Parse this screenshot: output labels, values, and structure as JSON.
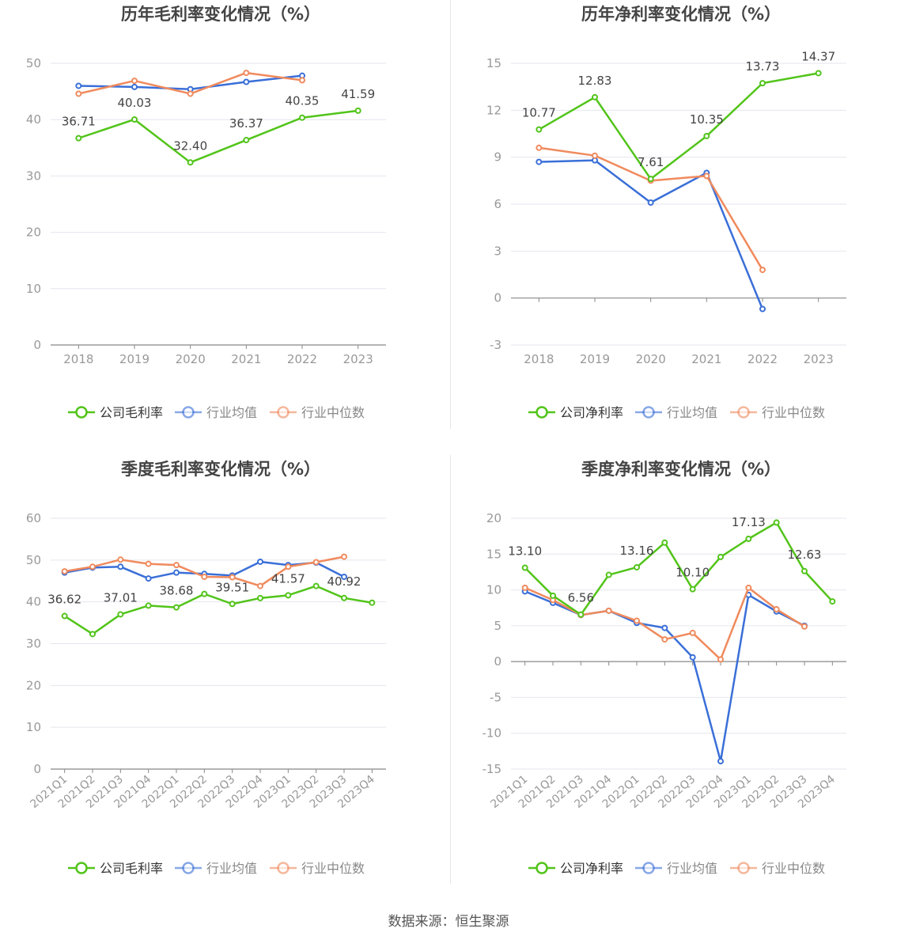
{
  "colors": {
    "company": "#52c41a",
    "avg": "#3a6fd8",
    "median": "#f08a5d",
    "grid": "#e4e6ee",
    "axis": "#999999",
    "text": "#666666",
    "title": "#444444"
  },
  "source_text": "数据来源：恒生聚源",
  "chart_data": [
    {
      "type": "line",
      "title": "历年毛利率变化情况（%）",
      "categories": [
        "2018",
        "2019",
        "2020",
        "2021",
        "2022",
        "2023"
      ],
      "ylim": [
        0,
        50
      ],
      "yticks": [
        0,
        10,
        20,
        30,
        40,
        50
      ],
      "grid": true,
      "legend": "bottom",
      "series": [
        {
          "name": "公司毛利率",
          "role": "company",
          "values": [
            36.71,
            40.03,
            32.4,
            36.37,
            40.35,
            41.59
          ],
          "labels": [
            "36.71",
            "40.03",
            "32.40",
            "36.37",
            "40.35",
            "41.59"
          ]
        },
        {
          "name": "行业均值",
          "role": "avg",
          "values": [
            46.0,
            45.8,
            45.4,
            46.7,
            47.8,
            null
          ]
        },
        {
          "name": "行业中位数",
          "role": "median",
          "values": [
            44.6,
            46.9,
            44.6,
            48.3,
            47.0,
            null
          ]
        }
      ]
    },
    {
      "type": "line",
      "title": "历年净利率变化情况（%）",
      "categories": [
        "2018",
        "2019",
        "2020",
        "2021",
        "2022",
        "2023"
      ],
      "ylim": [
        -3,
        15
      ],
      "yticks": [
        -3,
        0,
        3,
        6,
        9,
        12,
        15
      ],
      "grid": true,
      "legend": "bottom",
      "series": [
        {
          "name": "公司净利率",
          "role": "company",
          "values": [
            10.77,
            12.83,
            7.61,
            10.35,
            13.73,
            14.37
          ],
          "labels": [
            "10.77",
            "12.83",
            "7.61",
            "10.35",
            "13.73",
            "14.37"
          ]
        },
        {
          "name": "行业均值",
          "role": "avg",
          "values": [
            8.7,
            8.8,
            6.1,
            8.0,
            -0.7,
            null
          ]
        },
        {
          "name": "行业中位数",
          "role": "median",
          "values": [
            9.6,
            9.1,
            7.5,
            7.8,
            1.8,
            null
          ]
        }
      ]
    },
    {
      "type": "line",
      "title": "季度毛利率变化情况（%）",
      "categories": [
        "2021Q1",
        "2021Q2",
        "2021Q3",
        "2021Q4",
        "2022Q1",
        "2022Q2",
        "2022Q3",
        "2022Q4",
        "2023Q1",
        "2023Q2",
        "2023Q3",
        "2023Q4"
      ],
      "ylim": [
        0,
        60
      ],
      "yticks": [
        0,
        10,
        20,
        30,
        40,
        50,
        60
      ],
      "grid": true,
      "legend": "bottom",
      "series": [
        {
          "name": "公司毛利率",
          "role": "company",
          "values": [
            36.62,
            32.3,
            37.01,
            39.1,
            38.68,
            41.9,
            39.51,
            40.9,
            41.57,
            43.8,
            40.92,
            39.8
          ],
          "labels": [
            "36.62",
            "",
            "37.01",
            "",
            "38.68",
            "",
            "39.51",
            "",
            "41.57",
            "",
            "40.92",
            ""
          ]
        },
        {
          "name": "行业均值",
          "role": "avg",
          "values": [
            47.0,
            48.2,
            48.4,
            45.6,
            47.0,
            46.7,
            46.3,
            49.6,
            48.8,
            49.4,
            46.0,
            null
          ]
        },
        {
          "name": "行业中位数",
          "role": "median",
          "values": [
            47.3,
            48.4,
            50.1,
            49.1,
            48.8,
            46.0,
            45.9,
            43.8,
            48.4,
            49.5,
            50.8,
            null
          ]
        }
      ]
    },
    {
      "type": "line",
      "title": "季度净利率变化情况（%）",
      "categories": [
        "2021Q1",
        "2021Q2",
        "2021Q3",
        "2021Q4",
        "2022Q1",
        "2022Q2",
        "2022Q3",
        "2022Q4",
        "2023Q1",
        "2023Q2",
        "2023Q3",
        "2023Q4"
      ],
      "ylim": [
        -15,
        20
      ],
      "yticks": [
        -15,
        -10,
        -5,
        0,
        5,
        10,
        15,
        20
      ],
      "grid": true,
      "legend": "bottom",
      "series": [
        {
          "name": "公司净利率",
          "role": "company",
          "values": [
            13.1,
            9.2,
            6.56,
            12.1,
            13.16,
            16.6,
            10.1,
            14.6,
            17.13,
            19.4,
            12.63,
            8.4
          ],
          "labels": [
            "13.10",
            "",
            "6.56",
            "",
            "13.16",
            "",
            "10.10",
            "",
            "17.13",
            "",
            "12.63",
            ""
          ]
        },
        {
          "name": "行业均值",
          "role": "avg",
          "values": [
            9.8,
            8.2,
            6.5,
            7.1,
            5.4,
            4.7,
            0.6,
            -13.9,
            9.3,
            7.0,
            5.0,
            null
          ]
        },
        {
          "name": "行业中位数",
          "role": "median",
          "values": [
            10.3,
            8.6,
            6.5,
            7.1,
            5.7,
            3.1,
            4.0,
            0.3,
            10.3,
            7.3,
            4.9,
            null
          ]
        }
      ]
    }
  ]
}
